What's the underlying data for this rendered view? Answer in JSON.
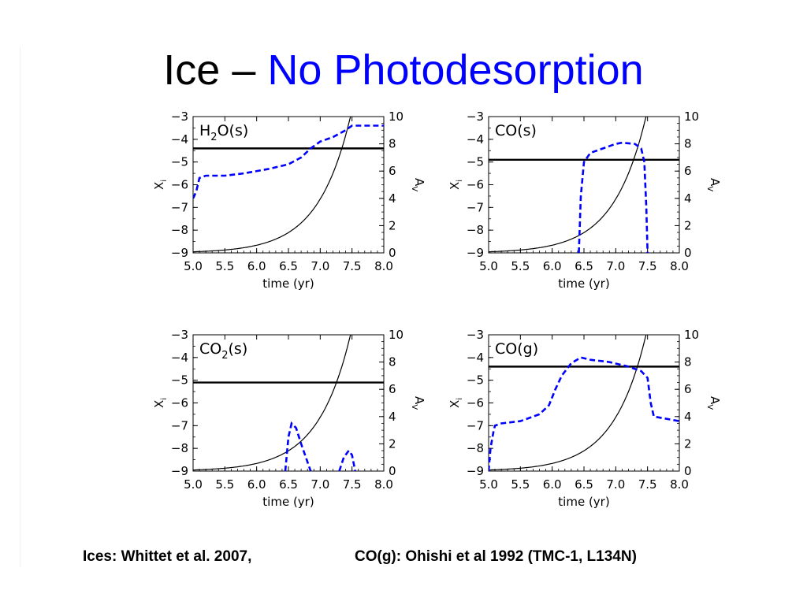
{
  "page": {
    "title_part1": "Ice – ",
    "title_part2": "No Photodesorption",
    "footer_left": "Ices: Whittet et al. 2007,",
    "footer_right": "CO(g): Ohishi et al 1992 (TMC-1, L134N)"
  },
  "colors": {
    "title_accent": "#0000ff",
    "dashed_series": "#0000ff",
    "solid_series": "#000000"
  },
  "chart_data": [
    {
      "type": "line",
      "species_label": "H",
      "species_sub": "2",
      "species_suffix": "O(s)",
      "xlabel": "time (yr)",
      "ylabel_left": "X",
      "ylabel_left_sub": "i",
      "ylabel_right": "A",
      "ylabel_right_sub": "V",
      "xlim": [
        5.0,
        8.0
      ],
      "ylim_left": [
        -9,
        -3
      ],
      "ylim_right": [
        0,
        10
      ],
      "x_ticks": [
        "5.0",
        "5.5",
        "6.0",
        "6.5",
        "7.0",
        "7.5",
        "8.0"
      ],
      "y_left_ticks": [
        "−3",
        "−4",
        "−5",
        "−6",
        "−7",
        "−8",
        "−9"
      ],
      "y_right_ticks": [
        "10",
        "8",
        "6",
        "4",
        "2",
        "0"
      ],
      "observed_level": -4.4,
      "abundance_dashed": [
        [
          5.0,
          -6.6
        ],
        [
          5.05,
          -6.3
        ],
        [
          5.1,
          -5.7
        ],
        [
          5.2,
          -5.6
        ],
        [
          5.5,
          -5.6
        ],
        [
          5.8,
          -5.5
        ],
        [
          6.2,
          -5.3
        ],
        [
          6.5,
          -5.1
        ],
        [
          6.7,
          -4.8
        ],
        [
          6.85,
          -4.4
        ],
        [
          7.0,
          -4.1
        ],
        [
          7.2,
          -3.9
        ],
        [
          7.4,
          -3.6
        ],
        [
          7.5,
          -3.4
        ],
        [
          8.0,
          -3.4
        ]
      ],
      "av_solid": "exponential"
    },
    {
      "type": "line",
      "species_label": "CO(s)",
      "species_sub": "",
      "species_suffix": "",
      "xlabel": "time (yr)",
      "ylabel_left": "X",
      "ylabel_left_sub": "i",
      "ylabel_right": "A",
      "ylabel_right_sub": "V",
      "xlim": [
        5.0,
        8.0
      ],
      "ylim_left": [
        -9,
        -3
      ],
      "ylim_right": [
        0,
        10
      ],
      "x_ticks": [
        "5.0",
        "5.5",
        "6.0",
        "6.5",
        "7.0",
        "7.5",
        "8.0"
      ],
      "y_left_ticks": [
        "−3",
        "−4",
        "−5",
        "−6",
        "−7",
        "−8",
        "−9"
      ],
      "y_right_ticks": [
        "10",
        "8",
        "6",
        "4",
        "2",
        "0"
      ],
      "observed_level": -4.9,
      "abundance_dashed": [
        [
          6.42,
          -9.0
        ],
        [
          6.45,
          -6.5
        ],
        [
          6.5,
          -5.0
        ],
        [
          6.6,
          -4.6
        ],
        [
          6.8,
          -4.4
        ],
        [
          7.0,
          -4.2
        ],
        [
          7.1,
          -4.15
        ],
        [
          7.3,
          -4.2
        ],
        [
          7.4,
          -4.4
        ],
        [
          7.45,
          -5.0
        ],
        [
          7.48,
          -7.0
        ],
        [
          7.5,
          -9.0
        ]
      ],
      "av_solid": "exponential"
    },
    {
      "type": "line",
      "species_label": "CO",
      "species_sub": "2",
      "species_suffix": "(s)",
      "xlabel": "time (yr)",
      "ylabel_left": "X",
      "ylabel_left_sub": "i",
      "ylabel_right": "A",
      "ylabel_right_sub": "V",
      "xlim": [
        5.0,
        8.0
      ],
      "ylim_left": [
        -9,
        -3
      ],
      "ylim_right": [
        0,
        10
      ],
      "x_ticks": [
        "5.0",
        "5.5",
        "6.0",
        "6.5",
        "7.0",
        "7.5",
        "8.0"
      ],
      "y_left_ticks": [
        "−3",
        "−4",
        "−5",
        "−6",
        "−7",
        "−8",
        "−9"
      ],
      "y_right_ticks": [
        "10",
        "8",
        "6",
        "4",
        "2",
        "0"
      ],
      "observed_level": -5.1,
      "abundance_dashed_segments": [
        [
          [
            6.45,
            -9.0
          ],
          [
            6.5,
            -7.5
          ],
          [
            6.55,
            -6.9
          ],
          [
            6.62,
            -7.1
          ],
          [
            6.7,
            -7.8
          ],
          [
            6.8,
            -8.6
          ],
          [
            6.85,
            -9.0
          ]
        ],
        [
          [
            7.3,
            -9.0
          ],
          [
            7.37,
            -8.4
          ],
          [
            7.45,
            -8.1
          ],
          [
            7.5,
            -8.3
          ],
          [
            7.55,
            -9.0
          ]
        ]
      ],
      "av_solid": "exponential"
    },
    {
      "type": "line",
      "species_label": "CO(g)",
      "species_sub": "",
      "species_suffix": "",
      "xlabel": "time (yr)",
      "ylabel_left": "X",
      "ylabel_left_sub": "i",
      "ylabel_right": "A",
      "ylabel_right_sub": "V",
      "xlim": [
        5.0,
        8.0
      ],
      "ylim_left": [
        -9,
        -3
      ],
      "ylim_right": [
        0,
        10
      ],
      "x_ticks": [
        "5.0",
        "5.5",
        "6.0",
        "6.5",
        "7.0",
        "7.5",
        "8.0"
      ],
      "y_left_ticks": [
        "−3",
        "−4",
        "−5",
        "−6",
        "−7",
        "−8",
        "−9"
      ],
      "y_right_ticks": [
        "10",
        "8",
        "6",
        "4",
        "2",
        "0"
      ],
      "observed_level": -4.4,
      "abundance_dashed": [
        [
          5.0,
          -9.0
        ],
        [
          5.03,
          -8.0
        ],
        [
          5.08,
          -7.2
        ],
        [
          5.1,
          -7.0
        ],
        [
          5.2,
          -6.9
        ],
        [
          5.5,
          -6.8
        ],
        [
          5.8,
          -6.5
        ],
        [
          5.95,
          -6.1
        ],
        [
          6.05,
          -5.4
        ],
        [
          6.15,
          -4.8
        ],
        [
          6.3,
          -4.25
        ],
        [
          6.45,
          -4.0
        ],
        [
          6.6,
          -4.1
        ],
        [
          6.9,
          -4.2
        ],
        [
          7.2,
          -4.4
        ],
        [
          7.4,
          -4.6
        ],
        [
          7.5,
          -4.9
        ],
        [
          7.55,
          -6.0
        ],
        [
          7.6,
          -6.6
        ],
        [
          7.8,
          -6.7
        ],
        [
          8.0,
          -6.8
        ]
      ],
      "av_solid": "exponential"
    }
  ]
}
